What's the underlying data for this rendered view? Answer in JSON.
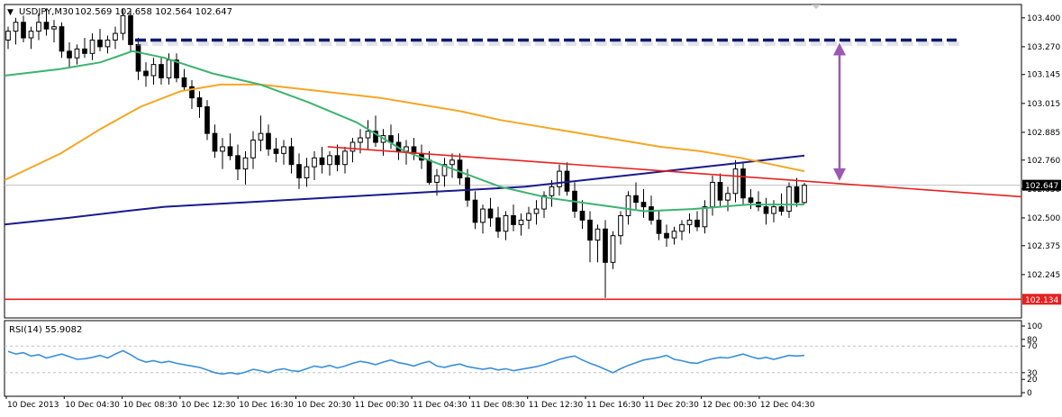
{
  "header": {
    "arrow_glyph": "▼",
    "symbol": "USDJPY,M30",
    "ohlc": "102.569 102.658 102.564 102.647"
  },
  "rsi_panel": {
    "label": "RSI(14) 55.9082"
  },
  "colors": {
    "background": "#ffffff",
    "grid": "#c0c0c0",
    "candle_up": "#ffffff",
    "candle_down": "#000000",
    "ma_fast": "#3cb371",
    "ma_mid": "#f5a623",
    "ma_slow": "#1a1a8c",
    "resistance_dash": "#0d1b6b",
    "trendline": "#e82020",
    "support": "#e82020",
    "arrow": "#9b59b6",
    "rsi": "#3a8fd9",
    "current_price_box": "#000000"
  },
  "chart_data": [
    {
      "type": "candlestick",
      "title": "USDJPY,M30",
      "ylim": [
        102.05,
        103.46
      ],
      "y_ticks": [
        "103.400",
        "103.270",
        "103.145",
        "103.015",
        "102.885",
        "102.760",
        "102.630",
        "102.500",
        "102.375",
        "102.245"
      ],
      "x_ticks": [
        "10 Dec 2013",
        "10 Dec 04:30",
        "10 Dec 08:30",
        "10 Dec 12:30",
        "10 Dec 16:30",
        "10 Dec 20:30",
        "11 Dec 00:30",
        "11 Dec 04:30",
        "11 Dec 08:30",
        "11 Dec 12:30",
        "11 Dec 16:30",
        "11 Dec 20:30",
        "12 Dec 00:30",
        "12 Dec 04:30"
      ],
      "current_price": "102.647",
      "support_level": "102.134",
      "candles": [
        [
          103.3,
          103.36,
          103.26,
          103.34
        ],
        [
          103.34,
          103.4,
          103.28,
          103.38
        ],
        [
          103.38,
          103.41,
          103.29,
          103.31
        ],
        [
          103.31,
          103.36,
          103.26,
          103.34
        ],
        [
          103.34,
          103.42,
          103.3,
          103.38
        ],
        [
          103.38,
          103.44,
          103.32,
          103.35
        ],
        [
          103.35,
          103.39,
          103.29,
          103.36
        ],
        [
          103.36,
          103.38,
          103.22,
          103.25
        ],
        [
          103.25,
          103.29,
          103.18,
          103.22
        ],
        [
          103.22,
          103.28,
          103.19,
          103.26
        ],
        [
          103.26,
          103.31,
          103.22,
          103.24
        ],
        [
          103.24,
          103.33,
          103.21,
          103.3
        ],
        [
          103.3,
          103.35,
          103.25,
          103.27
        ],
        [
          103.27,
          103.32,
          103.24,
          103.3
        ],
        [
          103.3,
          103.36,
          103.26,
          103.33
        ],
        [
          103.33,
          103.44,
          103.3,
          103.41
        ],
        [
          103.41,
          103.44,
          103.25,
          103.28
        ],
        [
          103.28,
          103.31,
          103.12,
          103.16
        ],
        [
          103.16,
          103.2,
          103.09,
          103.14
        ],
        [
          103.14,
          103.22,
          103.1,
          103.19
        ],
        [
          103.19,
          103.22,
          103.1,
          103.13
        ],
        [
          103.13,
          103.24,
          103.1,
          103.21
        ],
        [
          103.21,
          103.24,
          103.11,
          103.13
        ],
        [
          103.13,
          103.17,
          103.07,
          103.09
        ],
        [
          103.09,
          103.12,
          102.99,
          103.04
        ],
        [
          103.04,
          103.07,
          102.95,
          103.0
        ],
        [
          103.0,
          103.03,
          102.85,
          102.88
        ],
        [
          102.88,
          102.92,
          102.77,
          102.8
        ],
        [
          102.8,
          102.86,
          102.72,
          102.82
        ],
        [
          102.82,
          102.88,
          102.76,
          102.78
        ],
        [
          102.78,
          102.83,
          102.67,
          102.72
        ],
        [
          102.72,
          102.8,
          102.65,
          102.77
        ],
        [
          102.77,
          102.89,
          102.72,
          102.85
        ],
        [
          102.85,
          102.96,
          102.8,
          102.88
        ],
        [
          102.88,
          102.92,
          102.78,
          102.81
        ],
        [
          102.81,
          102.86,
          102.75,
          102.79
        ],
        [
          102.79,
          102.85,
          102.74,
          102.82
        ],
        [
          102.82,
          102.86,
          102.7,
          102.74
        ],
        [
          102.74,
          102.79,
          102.63,
          102.68
        ],
        [
          102.68,
          102.77,
          102.64,
          102.73
        ],
        [
          102.73,
          102.8,
          102.67,
          102.77
        ],
        [
          102.77,
          102.82,
          102.7,
          102.74
        ],
        [
          102.74,
          102.8,
          102.69,
          102.78
        ],
        [
          102.78,
          102.83,
          102.71,
          102.74
        ],
        [
          102.74,
          102.82,
          102.7,
          102.8
        ],
        [
          102.8,
          102.86,
          102.75,
          102.84
        ],
        [
          102.84,
          102.9,
          102.79,
          102.86
        ],
        [
          102.86,
          102.94,
          102.81,
          102.89
        ],
        [
          102.89,
          102.96,
          102.82,
          102.84
        ],
        [
          102.84,
          102.9,
          102.78,
          102.87
        ],
        [
          102.87,
          102.92,
          102.81,
          102.84
        ],
        [
          102.84,
          102.88,
          102.76,
          102.8
        ],
        [
          102.8,
          102.85,
          102.74,
          102.82
        ],
        [
          102.82,
          102.86,
          102.76,
          102.79
        ],
        [
          102.79,
          102.83,
          102.72,
          102.76
        ],
        [
          102.76,
          102.8,
          102.65,
          102.66
        ],
        [
          102.66,
          102.72,
          102.6,
          102.69
        ],
        [
          102.69,
          102.77,
          102.64,
          102.74
        ],
        [
          102.74,
          102.79,
          102.68,
          102.76
        ],
        [
          102.76,
          102.79,
          102.65,
          102.68
        ],
        [
          102.68,
          102.72,
          102.55,
          102.58
        ],
        [
          102.58,
          102.62,
          102.45,
          102.48
        ],
        [
          102.48,
          102.56,
          102.43,
          102.54
        ],
        [
          102.54,
          102.59,
          102.46,
          102.5
        ],
        [
          102.5,
          102.55,
          102.41,
          102.44
        ],
        [
          102.44,
          102.53,
          102.4,
          102.51
        ],
        [
          102.51,
          102.56,
          102.44,
          102.47
        ],
        [
          102.47,
          102.52,
          102.42,
          102.49
        ],
        [
          102.49,
          102.55,
          102.45,
          102.52
        ],
        [
          102.52,
          102.58,
          102.47,
          102.54
        ],
        [
          102.54,
          102.62,
          102.5,
          102.6
        ],
        [
          102.6,
          102.67,
          102.55,
          102.64
        ],
        [
          102.64,
          102.74,
          102.6,
          102.71
        ],
        [
          102.71,
          102.75,
          102.6,
          102.62
        ],
        [
          102.62,
          102.66,
          102.5,
          102.53
        ],
        [
          102.53,
          102.58,
          102.45,
          102.49
        ],
        [
          102.49,
          102.53,
          102.3,
          102.4
        ],
        [
          102.4,
          102.47,
          102.3,
          102.45
        ],
        [
          102.45,
          102.49,
          102.14,
          102.3
        ],
        [
          102.3,
          102.44,
          102.27,
          102.42
        ],
        [
          102.42,
          102.53,
          102.38,
          102.51
        ],
        [
          102.51,
          102.62,
          102.47,
          102.6
        ],
        [
          102.6,
          102.66,
          102.54,
          102.57
        ],
        [
          102.57,
          102.63,
          102.5,
          102.55
        ],
        [
          102.55,
          102.6,
          102.47,
          102.49
        ],
        [
          102.49,
          102.53,
          102.4,
          102.43
        ],
        [
          102.43,
          102.47,
          102.37,
          102.41
        ],
        [
          102.41,
          102.46,
          102.38,
          102.44
        ],
        [
          102.44,
          102.49,
          102.4,
          102.47
        ],
        [
          102.47,
          102.52,
          102.43,
          102.49
        ],
        [
          102.49,
          102.53,
          102.44,
          102.46
        ],
        [
          102.46,
          102.58,
          102.43,
          102.55
        ],
        [
          102.55,
          102.69,
          102.51,
          102.66
        ],
        [
          102.66,
          102.7,
          102.55,
          102.58
        ],
        [
          102.58,
          102.64,
          102.53,
          102.61
        ],
        [
          102.61,
          102.76,
          102.57,
          102.72
        ],
        [
          102.72,
          102.75,
          102.56,
          102.59
        ],
        [
          102.59,
          102.63,
          102.54,
          102.57
        ],
        [
          102.57,
          102.62,
          102.53,
          102.55
        ],
        [
          102.55,
          102.59,
          102.47,
          102.52
        ],
        [
          102.52,
          102.58,
          102.48,
          102.55
        ],
        [
          102.55,
          102.61,
          102.51,
          102.53
        ],
        [
          102.53,
          102.66,
          102.5,
          102.64
        ],
        [
          102.64,
          102.68,
          102.55,
          102.57
        ],
        [
          102.569,
          102.658,
          102.564,
          102.647
        ]
      ],
      "ma_fast_x": [
        0.0,
        0.07,
        0.12,
        0.16,
        0.2,
        0.26,
        0.32,
        0.38,
        0.44,
        0.5,
        0.56,
        0.62,
        0.68,
        0.74,
        0.8,
        0.86,
        0.93,
        1.0
      ],
      "ma_fast": [
        103.14,
        103.17,
        103.2,
        103.25,
        103.22,
        103.15,
        103.1,
        103.02,
        102.93,
        102.8,
        102.72,
        102.64,
        102.59,
        102.56,
        102.53,
        102.54,
        102.56,
        102.56
      ],
      "ma_mid_x": [
        0.0,
        0.07,
        0.12,
        0.17,
        0.22,
        0.27,
        0.32,
        0.37,
        0.42,
        0.47,
        0.52,
        0.57,
        0.62,
        0.67,
        0.72,
        0.77,
        0.82,
        0.87,
        0.92,
        0.96,
        1.0
      ],
      "ma_mid": [
        102.67,
        102.79,
        102.9,
        103.0,
        103.07,
        103.1,
        103.1,
        103.08,
        103.06,
        103.04,
        103.01,
        102.98,
        102.94,
        102.91,
        102.88,
        102.85,
        102.82,
        102.8,
        102.77,
        102.74,
        102.71
      ],
      "ma_slow_x": [
        0.0,
        0.08,
        0.15,
        0.2,
        0.25,
        0.3,
        0.35,
        0.4,
        0.45,
        0.5,
        0.55,
        0.6,
        0.65,
        0.7,
        0.75,
        0.8,
        0.85,
        0.9,
        0.95,
        1.0
      ],
      "ma_slow": [
        102.47,
        102.5,
        102.53,
        102.55,
        102.56,
        102.57,
        102.58,
        102.59,
        102.6,
        102.61,
        102.62,
        102.63,
        102.64,
        102.66,
        102.68,
        102.7,
        102.72,
        102.74,
        102.76,
        102.78
      ],
      "resistance_dashed": 103.3,
      "trendline": [
        [
          0.404,
          102.82
        ],
        [
          1.06,
          102.65
        ]
      ]
    },
    {
      "type": "line",
      "title": "RSI(14) 55.9082",
      "ylim": [
        0,
        100
      ],
      "y_ticks": [
        "100",
        "80",
        "70",
        "30",
        "20",
        "0"
      ],
      "values": [
        62,
        58,
        60,
        55,
        57,
        52,
        55,
        58,
        54,
        50,
        51,
        53,
        56,
        52,
        58,
        63,
        57,
        50,
        46,
        48,
        45,
        47,
        44,
        42,
        40,
        38,
        34,
        30,
        28,
        30,
        28,
        31,
        35,
        33,
        30,
        34,
        36,
        33,
        32,
        36,
        40,
        38,
        41,
        37,
        40,
        44,
        47,
        45,
        42,
        46,
        49,
        45,
        43,
        40,
        44,
        47,
        40,
        38,
        41,
        43,
        39,
        37,
        35,
        37,
        34,
        36,
        33,
        35,
        37,
        39,
        42,
        46,
        50,
        53,
        55,
        49,
        44,
        40,
        35,
        30,
        36,
        41,
        45,
        49,
        51,
        53,
        56,
        50,
        48,
        45,
        44,
        48,
        51,
        53,
        52,
        55,
        58,
        54,
        51,
        53,
        50,
        53,
        56,
        55,
        55.9
      ]
    }
  ]
}
